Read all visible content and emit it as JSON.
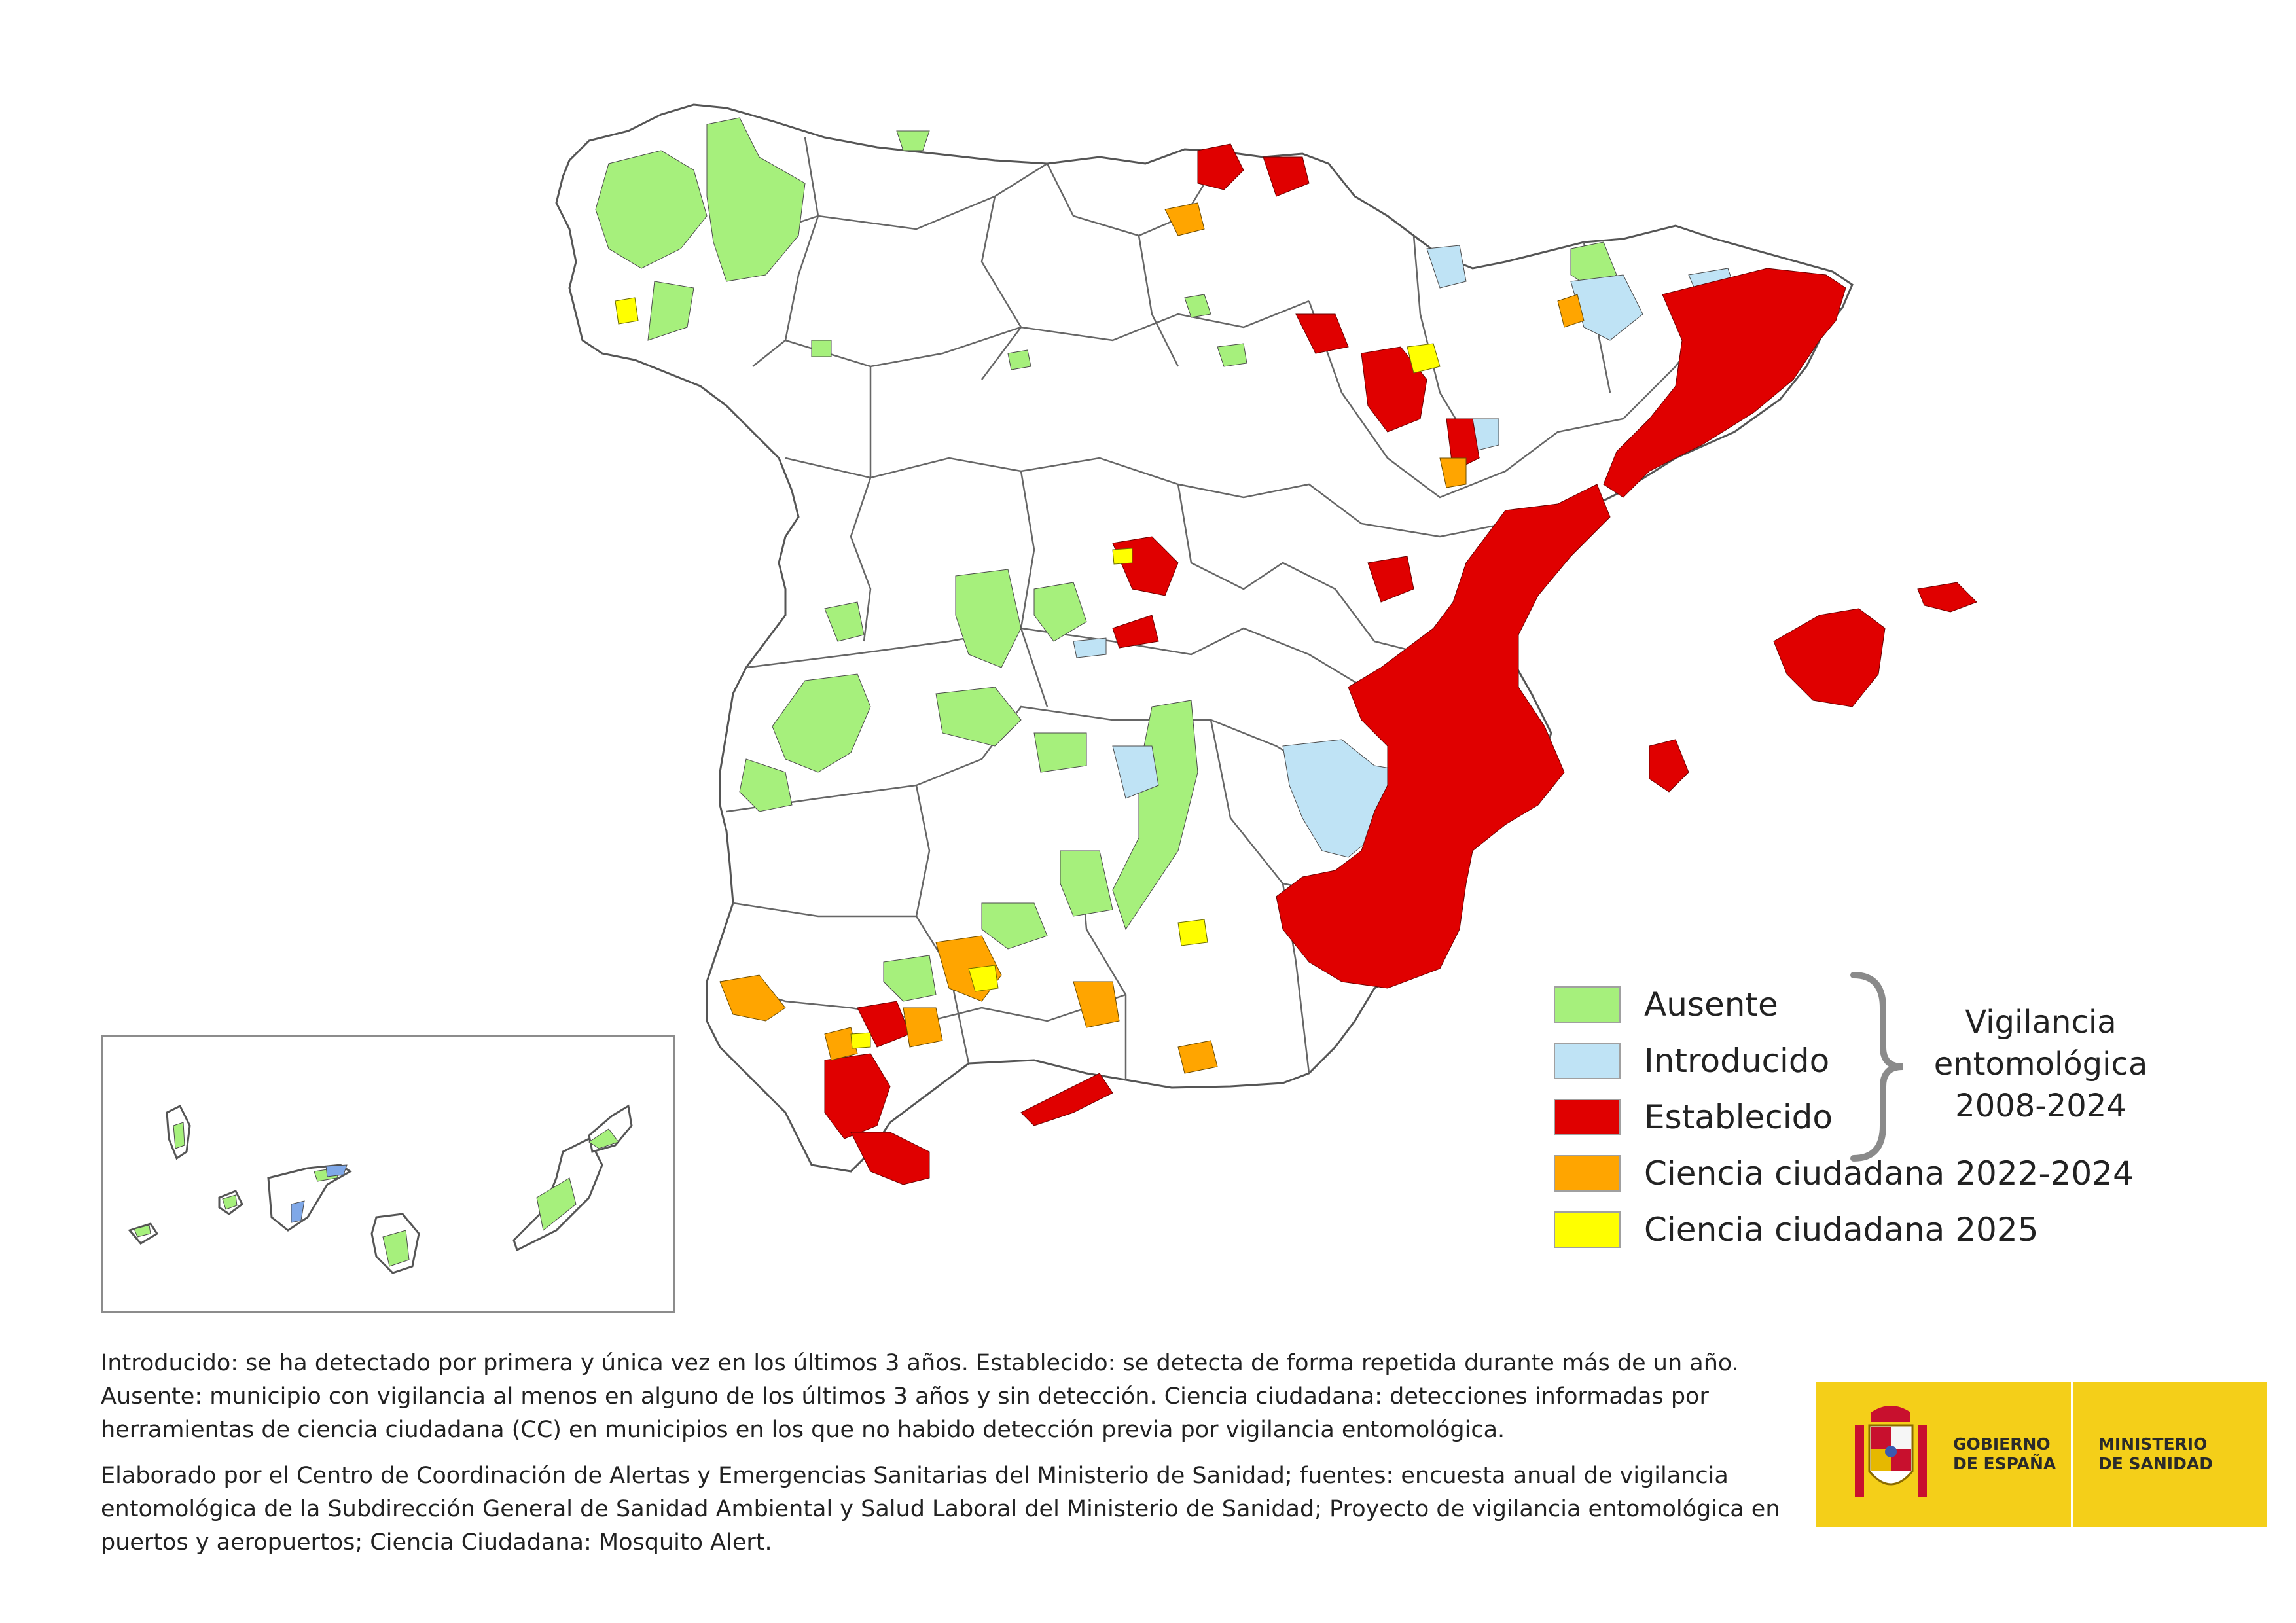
{
  "colors": {
    "ausente": "#a6f07c",
    "introducido": "#bfe3f5",
    "establecido": "#e00000",
    "cc_2022_2024": "#ffa500",
    "cc_2025": "#ffff00",
    "border": "#555555"
  },
  "legend": {
    "items": [
      {
        "label": "Ausente",
        "color": "#a6f07c"
      },
      {
        "label": "Introducido",
        "color": "#bfe3f5"
      },
      {
        "label": "Establecido",
        "color": "#e00000"
      },
      {
        "label": "Ciencia ciudadana 2022-2024",
        "color": "#ffa500"
      },
      {
        "label": "Ciencia ciudadana 2025",
        "color": "#ffff00"
      }
    ],
    "group_label_lines": [
      "Vigilancia",
      "entomológica",
      "2008-2024"
    ]
  },
  "notes": {
    "definitions": "Introducido: se ha detectado por primera y única vez en los últimos 3 años. Establecido: se detecta de forma repetida durante más de un año. Ausente: municipio con vigilancia al menos en alguno de los últimos 3 años y sin detección. Ciencia ciudadana: detecciones informadas por herramientas de ciencia ciudadana (CC) en municipios en los que no habido detección previa por vigilancia entomológica.",
    "sources": "Elaborado por el Centro de Coordinación de Alertas y Emergencias Sanitarias del Ministerio de Sanidad; fuentes: encuesta anual de vigilancia entomológica de la Subdirección General de Sanidad Ambiental y Salud Laboral del Ministerio de Sanidad; Proyecto de vigilancia entomológica en puertos y aeropuertos; Ciencia Ciudadana: Mosquito Alert."
  },
  "logo": {
    "gobierno_lines": [
      "GOBIERNO",
      "DE ESPAÑA"
    ],
    "ministerio_lines": [
      "MINISTERIO",
      "DE SANIDAD"
    ]
  }
}
